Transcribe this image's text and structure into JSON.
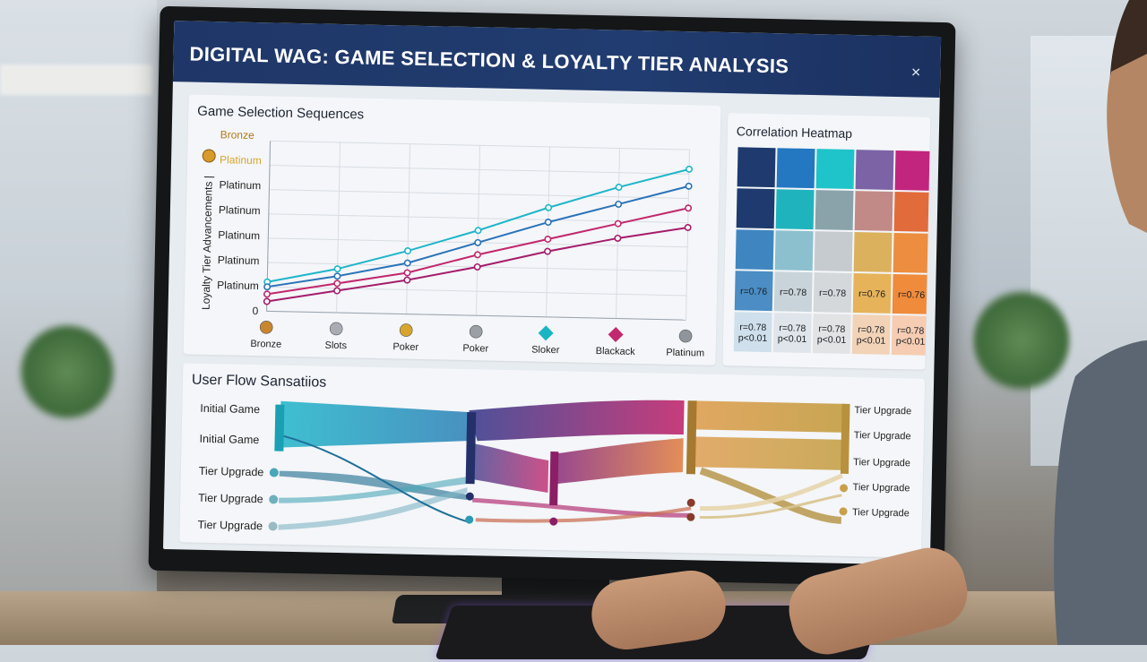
{
  "window": {
    "title": "DIGITAL WAG: GAME SELECTION & LOYALTY TIER ANALYSIS",
    "close_icon": "×"
  },
  "line_panel": {
    "title": "Game Selection Sequences",
    "y_axis_label": "Loyalty Tier Advancements |",
    "y_tier_labels": [
      "Bronze",
      "Platinum",
      "Platinum",
      "Platinum",
      "Platinum",
      "Platinum",
      "Platinum",
      "0"
    ],
    "x_labels": [
      "Bronze",
      "Slots",
      "Poker",
      "Poker",
      "Sloker",
      "Blackack",
      "Platinum"
    ],
    "x_icons": [
      "bronze-medal-icon",
      "silver-medal-icon",
      "gold-medal-icon",
      "silver-medal-icon",
      "teal-gem-icon",
      "pink-gem-icon",
      "gray-medal-icon"
    ]
  },
  "chart_data": {
    "type": "line",
    "categories": [
      "Bronze",
      "Slots",
      "Poker",
      "Poker",
      "Sloker",
      "Blackack",
      "Platinum"
    ],
    "ylim": [
      0,
      7
    ],
    "grid": true,
    "series": [
      {
        "color": "#1fb5c9",
        "values": [
          1.2,
          1.8,
          2.6,
          3.5,
          4.5,
          5.4,
          6.2
        ]
      },
      {
        "color": "#2a73b8",
        "values": [
          1.0,
          1.5,
          2.1,
          3.0,
          3.9,
          4.7,
          5.5
        ]
      },
      {
        "color": "#c2286d",
        "values": [
          0.7,
          1.2,
          1.7,
          2.5,
          3.2,
          3.9,
          4.6
        ]
      },
      {
        "color": "#a51d6b",
        "values": [
          0.4,
          0.9,
          1.4,
          2.0,
          2.7,
          3.3,
          3.8
        ]
      }
    ]
  },
  "heatmap_panel": {
    "title": "Correlation Heatmap",
    "rows": [
      [
        {
          "color": "#1e3a6e",
          "text": ""
        },
        {
          "color": "#2478c2",
          "text": ""
        },
        {
          "color": "#1ec4c9",
          "text": ""
        },
        {
          "color": "#7c63a6",
          "text": ""
        },
        {
          "color": "#c2257d",
          "text": ""
        }
      ],
      [
        {
          "color": "#1e3a6e",
          "text": ""
        },
        {
          "color": "#1fb4bd",
          "text": ""
        },
        {
          "color": "#8aa3ab",
          "text": ""
        },
        {
          "color": "#c28a86",
          "text": ""
        },
        {
          "color": "#e26b3b",
          "text": ""
        }
      ],
      [
        {
          "color": "#3f86c1",
          "text": ""
        },
        {
          "color": "#8cc0cf",
          "text": ""
        },
        {
          "color": "#c5cbcf",
          "text": ""
        },
        {
          "color": "#dbb15e",
          "text": ""
        },
        {
          "color": "#ec8d3f",
          "text": ""
        }
      ],
      [
        {
          "color": "#4b8dc4",
          "text": "r=0.76"
        },
        {
          "color": "#c9d4da",
          "text": "r=0.78"
        },
        {
          "color": "#d5d8db",
          "text": "r=0.78"
        },
        {
          "color": "#e6b35a",
          "text": "r=0.76"
        },
        {
          "color": "#ef8b3b",
          "text": "r=0.76"
        }
      ],
      [
        {
          "color": "#cfe0ec",
          "text": "r=0.78\np<0.01"
        },
        {
          "color": "#dfe5ea",
          "text": "r=0.78\np<0.01"
        },
        {
          "color": "#e1e3e5",
          "text": "r=0.78\np<0.01"
        },
        {
          "color": "#f2d3b7",
          "text": "r=0.78\np<0.01"
        },
        {
          "color": "#f6cdb2",
          "text": "r=0.78\np<0.01"
        }
      ]
    ]
  },
  "flow_panel": {
    "title": "User Flow Sansatiios",
    "left_labels": [
      "Initial Game",
      "Initial Game",
      "Tier Upgrade",
      "Tier Upgrade",
      "Tier Upgrade"
    ],
    "right_labels": [
      "Tier Upgrade",
      "Tier Upgrade",
      "Tier Upgrade",
      "Tier Upgrade",
      "Tier Upgrade"
    ]
  }
}
